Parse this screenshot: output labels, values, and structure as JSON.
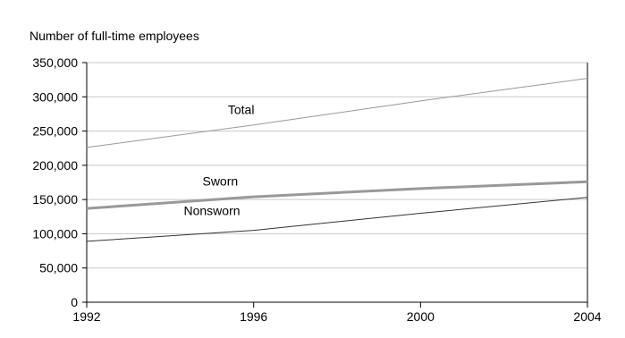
{
  "chart_data": {
    "type": "line",
    "title": "",
    "ylabel": "Number of full-time employees",
    "xlabel": "",
    "x": [
      1992,
      1996,
      2000,
      2004
    ],
    "x_tick_labels": [
      "1992",
      "1996",
      "2000",
      "2004"
    ],
    "ylim": [
      0,
      350000
    ],
    "y_ticks": [
      0,
      50000,
      100000,
      150000,
      200000,
      250000,
      300000,
      350000
    ],
    "y_tick_labels": [
      "0",
      "50,000",
      "100,000",
      "150,000",
      "200,000",
      "250,000",
      "300,000",
      "350,000"
    ],
    "grid": "horizontal",
    "legend": "none",
    "series": [
      {
        "name": "Total",
        "x": [
          1992,
          1996,
          2000,
          2004
        ],
        "values": [
          226000,
          259000,
          294000,
          327000
        ],
        "color": "#999999"
      },
      {
        "name": "Sworn",
        "x": [
          1992,
          1996,
          2000,
          2004
        ],
        "values": [
          137000,
          154000,
          166000,
          176000
        ],
        "color": "#999999"
      },
      {
        "name": "Nonsworn",
        "x": [
          1992,
          1996,
          2000,
          2004
        ],
        "values": [
          89000,
          105000,
          130000,
          153000
        ],
        "color": "#333333"
      }
    ]
  }
}
